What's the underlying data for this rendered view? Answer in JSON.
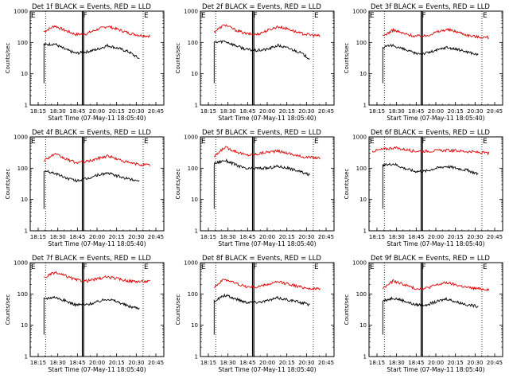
{
  "figure": {
    "background": "#ffffff"
  },
  "series_colors": {
    "events": "#000000",
    "lld": "#dd0000"
  },
  "common": {
    "xlabel": "Start Time (07-May-11 18:05:40)",
    "ylabel": "Counts/sec",
    "x_tick_labels": [
      "18:15",
      "18:30",
      "18:45",
      "20:00",
      "20:15",
      "20:30",
      "20:45"
    ],
    "y_tick_labels": [
      "1",
      "10",
      "100",
      "1000"
    ],
    "marker_labels": [
      "E",
      "F",
      "E"
    ]
  },
  "chart_data": [
    {
      "type": "line",
      "title": "Det 1f BLACK = Events, RED = LLD",
      "ylim": [
        1,
        1000
      ],
      "yscale": "log",
      "x": [
        "18:15",
        "18:22",
        "18:30",
        "18:37",
        "18:45",
        "18:52",
        "20:00",
        "20:07",
        "20:15",
        "20:22",
        "20:30",
        "20:37",
        "20:45"
      ],
      "series": [
        {
          "key": "lld",
          "values": [
            null,
            220,
            340,
            240,
            180,
            190,
            260,
            330,
            260,
            200,
            170,
            160,
            null
          ]
        },
        {
          "key": "events",
          "values": [
            null,
            85,
            90,
            60,
            45,
            50,
            60,
            80,
            65,
            50,
            30,
            null,
            null
          ]
        }
      ]
    },
    {
      "type": "line",
      "title": "Det 2f BLACK = Events, RED = LLD",
      "ylim": [
        1,
        1000
      ],
      "yscale": "log",
      "x": [
        "18:15",
        "18:22",
        "18:30",
        "18:37",
        "18:45",
        "18:52",
        "20:00",
        "20:07",
        "20:15",
        "20:22",
        "20:30",
        "20:37",
        "20:45"
      ],
      "series": [
        {
          "key": "lld",
          "values": [
            null,
            220,
            370,
            250,
            190,
            180,
            240,
            320,
            270,
            200,
            175,
            160,
            null
          ]
        },
        {
          "key": "events",
          "values": [
            null,
            100,
            110,
            80,
            60,
            55,
            60,
            80,
            65,
            50,
            30,
            null,
            null
          ]
        }
      ]
    },
    {
      "type": "line",
      "title": "Det 3f BLACK = Events, RED = LLD",
      "ylim": [
        1,
        1000
      ],
      "yscale": "log",
      "x": [
        "18:15",
        "18:22",
        "18:30",
        "18:37",
        "18:45",
        "18:52",
        "20:00",
        "20:07",
        "20:15",
        "20:22",
        "20:30",
        "20:37",
        "20:45"
      ],
      "series": [
        {
          "key": "lld",
          "values": [
            null,
            160,
            250,
            190,
            160,
            160,
            210,
            260,
            220,
            170,
            150,
            145,
            null
          ]
        },
        {
          "key": "events",
          "values": [
            null,
            70,
            80,
            60,
            45,
            45,
            55,
            70,
            60,
            50,
            40,
            null,
            null
          ]
        }
      ]
    },
    {
      "type": "line",
      "title": "Det 4f BLACK = Events, RED = LLD",
      "ylim": [
        1,
        1000
      ],
      "yscale": "log",
      "x": [
        "18:15",
        "18:22",
        "18:30",
        "18:37",
        "18:45",
        "18:52",
        "20:00",
        "20:07",
        "20:15",
        "20:22",
        "20:30",
        "20:37",
        "20:45"
      ],
      "series": [
        {
          "key": "lld",
          "values": [
            null,
            180,
            280,
            200,
            150,
            160,
            200,
            250,
            190,
            150,
            130,
            125,
            null
          ]
        },
        {
          "key": "events",
          "values": [
            null,
            80,
            70,
            50,
            40,
            45,
            60,
            70,
            55,
            45,
            40,
            null,
            null
          ]
        }
      ]
    },
    {
      "type": "line",
      "title": "Det 5f BLACK = Events, RED = LLD",
      "ylim": [
        1,
        1000
      ],
      "yscale": "log",
      "x": [
        "18:15",
        "18:22",
        "18:30",
        "18:37",
        "18:45",
        "18:52",
        "20:00",
        "20:07",
        "20:15",
        "20:22",
        "20:30",
        "20:37",
        "20:45"
      ],
      "series": [
        {
          "key": "lld",
          "values": [
            null,
            230,
            470,
            350,
            260,
            280,
            330,
            350,
            300,
            240,
            220,
            210,
            null
          ]
        },
        {
          "key": "events",
          "values": [
            null,
            140,
            180,
            130,
            95,
            100,
            100,
            115,
            100,
            80,
            60,
            null,
            null
          ]
        }
      ]
    },
    {
      "type": "line",
      "title": "Det 6f BLACK = Events, RED = LLD",
      "ylim": [
        1,
        1000
      ],
      "yscale": "log",
      "x": [
        "18:15",
        "18:22",
        "18:30",
        "18:37",
        "18:45",
        "18:52",
        "20:00",
        "20:07",
        "20:15",
        "20:22",
        "20:30",
        "20:37",
        "20:45"
      ],
      "series": [
        {
          "key": "lld",
          "values": [
            350,
            400,
            450,
            400,
            350,
            350,
            360,
            370,
            360,
            340,
            320,
            300,
            null
          ]
        },
        {
          "key": "events",
          "values": [
            null,
            120,
            140,
            100,
            80,
            80,
            100,
            115,
            100,
            85,
            65,
            null,
            null
          ]
        }
      ]
    },
    {
      "type": "line",
      "title": "Det 7f BLACK = Events, RED = LLD",
      "ylim": [
        1,
        1000
      ],
      "yscale": "log",
      "x": [
        "18:15",
        "18:22",
        "18:30",
        "18:37",
        "18:45",
        "18:52",
        "20:00",
        "20:07",
        "20:15",
        "20:22",
        "20:30",
        "20:37",
        "20:45"
      ],
      "series": [
        {
          "key": "lld",
          "values": [
            null,
            330,
            480,
            380,
            280,
            260,
            300,
            350,
            300,
            260,
            250,
            250,
            null
          ]
        },
        {
          "key": "events",
          "values": [
            null,
            70,
            80,
            60,
            45,
            45,
            55,
            70,
            55,
            40,
            35,
            null,
            null
          ]
        }
      ]
    },
    {
      "type": "line",
      "title": "Det 8f BLACK = Events, RED = LLD",
      "ylim": [
        1,
        1000
      ],
      "yscale": "log",
      "x": [
        "18:15",
        "18:22",
        "18:30",
        "18:37",
        "18:45",
        "18:52",
        "20:00",
        "20:07",
        "20:15",
        "20:22",
        "20:30",
        "20:37",
        "20:45"
      ],
      "series": [
        {
          "key": "lld",
          "values": [
            null,
            170,
            300,
            220,
            170,
            165,
            200,
            240,
            210,
            170,
            150,
            140,
            null
          ]
        },
        {
          "key": "events",
          "values": [
            null,
            60,
            90,
            70,
            55,
            55,
            60,
            75,
            65,
            55,
            45,
            null,
            null
          ]
        }
      ]
    },
    {
      "type": "line",
      "title": "Det 9f BLACK = Events, RED = LLD",
      "ylim": [
        1,
        1000
      ],
      "yscale": "log",
      "x": [
        "18:15",
        "18:22",
        "18:30",
        "18:37",
        "18:45",
        "18:52",
        "20:00",
        "20:07",
        "20:15",
        "20:22",
        "20:30",
        "20:37",
        "20:45"
      ],
      "series": [
        {
          "key": "lld",
          "values": [
            null,
            150,
            260,
            200,
            150,
            150,
            190,
            230,
            190,
            160,
            145,
            140,
            null
          ]
        },
        {
          "key": "events",
          "values": [
            null,
            60,
            75,
            60,
            45,
            45,
            55,
            70,
            55,
            45,
            40,
            null,
            null
          ]
        }
      ]
    }
  ]
}
